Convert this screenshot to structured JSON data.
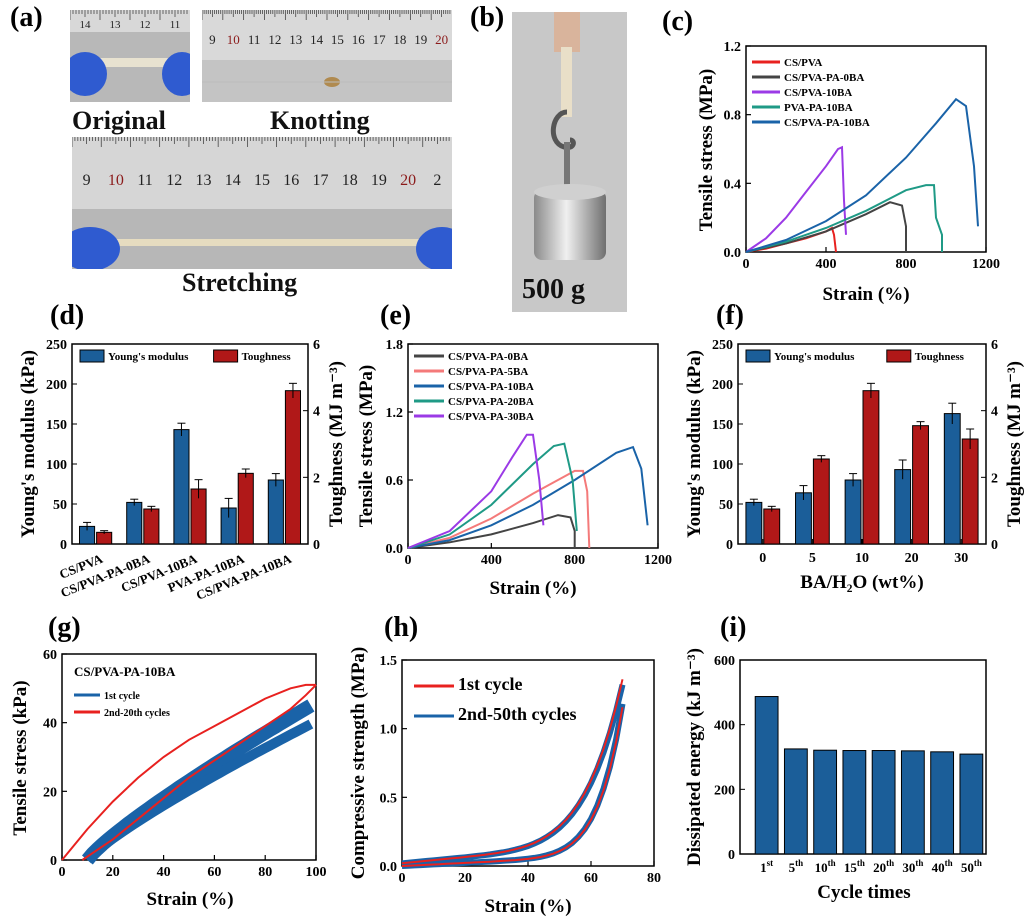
{
  "labels": {
    "a": "(a)",
    "b": "(b)",
    "c": "(c)",
    "d": "(d)",
    "e": "(e)",
    "f": "(f)",
    "g": "(g)",
    "h": "(h)",
    "i": "(i)"
  },
  "photos": {
    "original_caption": "Original",
    "knotting_caption": "Knotting",
    "stretching_caption": "Stretching",
    "weight_caption": "500 g",
    "ruler_ticks_main": [
      "9",
      "10",
      "11",
      "12",
      "13",
      "14",
      "15",
      "16",
      "17",
      "18",
      "19",
      "20",
      "2"
    ],
    "ruler_ticks_knot": [
      "9",
      "10",
      "11",
      "12",
      "13",
      "14",
      "15",
      "16",
      "17",
      "18",
      "19",
      "20"
    ],
    "ruler_ticks_orig": [
      "14",
      "13",
      "12",
      "11"
    ]
  },
  "colors": {
    "red": "#e8211f",
    "gray": "#444444",
    "purple": "#9b3ae6",
    "teal": "#1f9a86",
    "blue": "#1a63a8",
    "pink": "#f47a7a",
    "barblue": "#1b5e99",
    "barred": "#b01818"
  },
  "chart_data": [
    {
      "panel": "c",
      "type": "line",
      "xlabel": "Strain (%)",
      "ylabel": "Tensile stress (MPa)",
      "xlim": [
        0,
        1200
      ],
      "ylim": [
        0,
        1.2
      ],
      "xticks": [
        "0",
        "400",
        "800",
        "1200"
      ],
      "yticks": [
        "0.0",
        "0.4",
        "0.8",
        "1.2"
      ],
      "series": [
        {
          "name": "CS/PVA",
          "color": "red",
          "x": [
            0,
            100,
            200,
            300,
            400,
            430,
            440,
            450
          ],
          "y": [
            0,
            0.02,
            0.05,
            0.08,
            0.12,
            0.14,
            0.1,
            0.0
          ]
        },
        {
          "name": "CS/PVA-PA-0BA",
          "color": "gray",
          "x": [
            0,
            200,
            400,
            600,
            720,
            780,
            800,
            800
          ],
          "y": [
            0,
            0.05,
            0.12,
            0.22,
            0.29,
            0.27,
            0.15,
            0.0
          ]
        },
        {
          "name": "CS/PVA-10BA",
          "color": "purple",
          "x": [
            0,
            100,
            200,
            300,
            400,
            460,
            480,
            490,
            500
          ],
          "y": [
            0,
            0.08,
            0.2,
            0.35,
            0.5,
            0.6,
            0.61,
            0.3,
            0.1
          ]
        },
        {
          "name": "PVA-PA-10BA",
          "color": "teal",
          "x": [
            0,
            200,
            400,
            600,
            800,
            900,
            940,
            950,
            980,
            980
          ],
          "y": [
            0,
            0.06,
            0.14,
            0.24,
            0.36,
            0.39,
            0.39,
            0.2,
            0.1,
            0.0
          ]
        },
        {
          "name": "CS/PVA-PA-10BA",
          "color": "blue",
          "x": [
            0,
            200,
            400,
            600,
            800,
            950,
            1050,
            1100,
            1140,
            1160
          ],
          "y": [
            0,
            0.07,
            0.18,
            0.33,
            0.55,
            0.75,
            0.89,
            0.85,
            0.5,
            0.15
          ]
        }
      ]
    },
    {
      "panel": "d",
      "type": "bar",
      "ylabel": "Young's modulus (kPa)",
      "y2label": "Toughness (MJ m⁻³)",
      "ylim": [
        0,
        250
      ],
      "y2lim": [
        0,
        6
      ],
      "yticks": [
        "0",
        "50",
        "100",
        "150",
        "200",
        "250"
      ],
      "y2ticks": [
        "0",
        "2",
        "4",
        "6"
      ],
      "categories": [
        "CS/PVA",
        "CS/PVA-PA-0BA",
        "CS/PVA-10BA",
        "PVA-PA-10BA",
        "CS/PVA-PA-10BA"
      ],
      "series": [
        {
          "name": "Young's modulus",
          "values": [
            22,
            52,
            143,
            45,
            80
          ],
          "err": [
            5,
            4,
            8,
            12,
            8
          ]
        },
        {
          "name": "Toughness",
          "values": [
            0.35,
            1.05,
            1.65,
            2.12,
            4.6
          ],
          "err": [
            0.05,
            0.08,
            0.28,
            0.13,
            0.22
          ]
        }
      ]
    },
    {
      "panel": "e",
      "type": "line",
      "xlabel": "Strain (%)",
      "ylabel": "Tensile stress (MPa)",
      "xlim": [
        0,
        1200
      ],
      "ylim": [
        0,
        1.8
      ],
      "xticks": [
        "0",
        "400",
        "800",
        "1200"
      ],
      "yticks": [
        "0.0",
        "0.6",
        "1.2",
        "1.8"
      ],
      "series": [
        {
          "name": "CS/PVA-PA-0BA",
          "color": "gray",
          "x": [
            0,
            200,
            400,
            600,
            720,
            780,
            800,
            800
          ],
          "y": [
            0,
            0.05,
            0.12,
            0.22,
            0.29,
            0.27,
            0.15,
            0.0
          ]
        },
        {
          "name": "CS/PVA-PA-5BA",
          "color": "pink",
          "x": [
            0,
            200,
            400,
            600,
            800,
            840,
            860,
            870
          ],
          "y": [
            0,
            0.09,
            0.26,
            0.48,
            0.68,
            0.68,
            0.5,
            0.0
          ]
        },
        {
          "name": "CS/PVA-PA-10BA",
          "color": "blue",
          "x": [
            0,
            200,
            400,
            600,
            800,
            1000,
            1080,
            1120,
            1150
          ],
          "y": [
            0,
            0.07,
            0.2,
            0.38,
            0.6,
            0.84,
            0.89,
            0.7,
            0.2
          ]
        },
        {
          "name": "CS/PVA-PA-20BA",
          "color": "teal",
          "x": [
            0,
            200,
            400,
            600,
            700,
            750,
            790,
            810
          ],
          "y": [
            0,
            0.12,
            0.38,
            0.74,
            0.9,
            0.92,
            0.6,
            0.15
          ]
        },
        {
          "name": "CS/PVA-PA-30BA",
          "color": "purple",
          "x": [
            0,
            200,
            400,
            500,
            570,
            600,
            630,
            650
          ],
          "y": [
            0,
            0.15,
            0.5,
            0.8,
            1.0,
            1.0,
            0.6,
            0.2
          ]
        }
      ]
    },
    {
      "panel": "f",
      "type": "bar",
      "xlabel": "BA/H₂O (wt%)",
      "ylabel": "Young's modulus (kPa)",
      "y2label": "Toughness (MJ m⁻³)",
      "ylim": [
        0,
        250
      ],
      "y2lim": [
        0,
        6
      ],
      "yticks": [
        "0",
        "50",
        "100",
        "150",
        "200",
        "250"
      ],
      "y2ticks": [
        "0",
        "2",
        "4",
        "6"
      ],
      "categories": [
        "0",
        "5",
        "10",
        "20",
        "30"
      ],
      "series": [
        {
          "name": "Young's modulus",
          "values": [
            52,
            64,
            80,
            93,
            163
          ],
          "err": [
            4,
            9,
            8,
            12,
            13
          ]
        },
        {
          "name": "Toughness",
          "values": [
            1.05,
            2.55,
            4.6,
            3.55,
            3.15
          ],
          "err": [
            0.08,
            0.1,
            0.22,
            0.12,
            0.3
          ]
        }
      ]
    },
    {
      "panel": "g",
      "type": "line",
      "xlabel": "Strain (%)",
      "ylabel": "Tensile stress (kPa)",
      "title": "CS/PVA-PA-10BA",
      "xlim": [
        0,
        100
      ],
      "ylim": [
        0,
        60
      ],
      "xticks": [
        "0",
        "20",
        "40",
        "60",
        "80",
        "100"
      ],
      "yticks": [
        "0",
        "20",
        "40",
        "60"
      ],
      "series": [
        {
          "name": "1st cycle",
          "color": "blue"
        },
        {
          "name": "2nd-20th cycles",
          "color": "red"
        }
      ]
    },
    {
      "panel": "h",
      "type": "line",
      "xlabel": "Strain (%)",
      "ylabel": "Compressive strength (MPa)",
      "xlim": [
        0,
        80
      ],
      "ylim": [
        0,
        1.5
      ],
      "xticks": [
        "0",
        "20",
        "40",
        "60",
        "80"
      ],
      "yticks": [
        "0.0",
        "0.5",
        "1.0",
        "1.5"
      ],
      "series": [
        {
          "name": "1st cycle",
          "color": "red"
        },
        {
          "name": "2nd-50th cycles",
          "color": "blue"
        }
      ]
    },
    {
      "panel": "i",
      "type": "bar",
      "xlabel": "Cycle times",
      "ylabel": "Dissipated energy (kJ m⁻³)",
      "ylim": [
        0,
        600
      ],
      "yticks": [
        "0",
        "200",
        "400",
        "600"
      ],
      "categories": [
        "1",
        "5",
        "10",
        "15",
        "20",
        "30",
        "40",
        "50"
      ],
      "values": [
        487,
        325,
        321,
        320,
        320,
        319,
        316,
        309
      ]
    }
  ]
}
